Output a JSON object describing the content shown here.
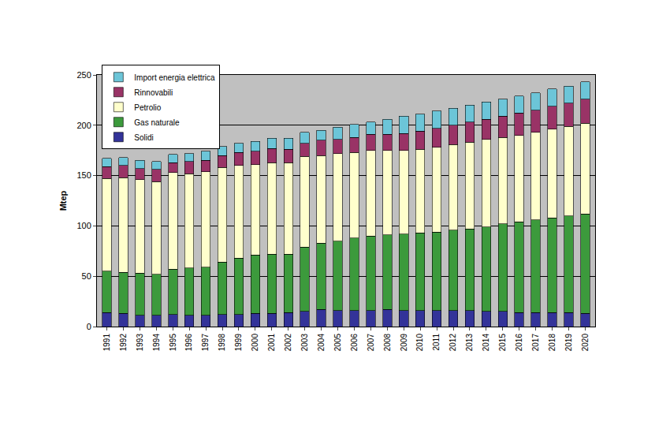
{
  "chart_data": {
    "type": "bar",
    "stacked": true,
    "y_label": "Mtep",
    "categories": [
      "1991",
      "1992",
      "1993",
      "1994",
      "1995",
      "1996",
      "1997",
      "1998",
      "1999",
      "2000",
      "2001",
      "2002",
      "2003",
      "2004",
      "2005",
      "2006",
      "2007",
      "2008",
      "2009",
      "2010",
      "2011",
      "2012",
      "2013",
      "2014",
      "2015",
      "2016",
      "2017",
      "2018",
      "2019",
      "2020"
    ],
    "series": [
      {
        "name": "Solidi",
        "color": "#333399",
        "values": [
          14,
          13,
          11,
          11,
          12,
          11,
          11,
          12,
          12,
          13,
          13,
          14,
          15,
          17,
          16,
          16,
          16,
          17,
          16,
          16,
          16,
          16,
          16,
          15,
          15,
          14,
          14,
          14,
          14,
          13
        ]
      },
      {
        "name": "Gas naturale",
        "color": "#3c9a3c",
        "values": [
          41,
          41,
          42,
          41,
          45,
          47,
          48,
          52,
          56,
          58,
          59,
          58,
          64,
          66,
          69,
          72,
          74,
          74,
          76,
          77,
          78,
          80,
          81,
          84,
          87,
          90,
          92,
          94,
          96,
          99
        ]
      },
      {
        "name": "Petrolio",
        "color": "#ffffcc",
        "values": [
          92,
          94,
          93,
          92,
          96,
          94,
          95,
          94,
          92,
          90,
          91,
          91,
          90,
          87,
          87,
          85,
          85,
          84,
          83,
          83,
          84,
          85,
          86,
          87,
          86,
          86,
          87,
          88,
          89,
          90
        ]
      },
      {
        "name": "Rinnovabili",
        "color": "#993366",
        "values": [
          12,
          12,
          11,
          12,
          10,
          12,
          11,
          12,
          13,
          13,
          14,
          13,
          13,
          15,
          14,
          15,
          16,
          16,
          17,
          18,
          19,
          19,
          20,
          20,
          21,
          22,
          22,
          23,
          23,
          24
        ]
      },
      {
        "name": "Import energia elettrica",
        "color": "#6cc5d8",
        "values": [
          8,
          8,
          8,
          8,
          8,
          8,
          9,
          9,
          9,
          10,
          10,
          11,
          11,
          10,
          12,
          13,
          12,
          15,
          17,
          17,
          17,
          17,
          17,
          17,
          17,
          17,
          17,
          17,
          17,
          17
        ]
      }
    ],
    "ylim": [
      0,
      250
    ],
    "yticks": [
      0,
      50,
      100,
      150,
      200,
      250
    ],
    "grid": true,
    "legend": "upper left"
  }
}
